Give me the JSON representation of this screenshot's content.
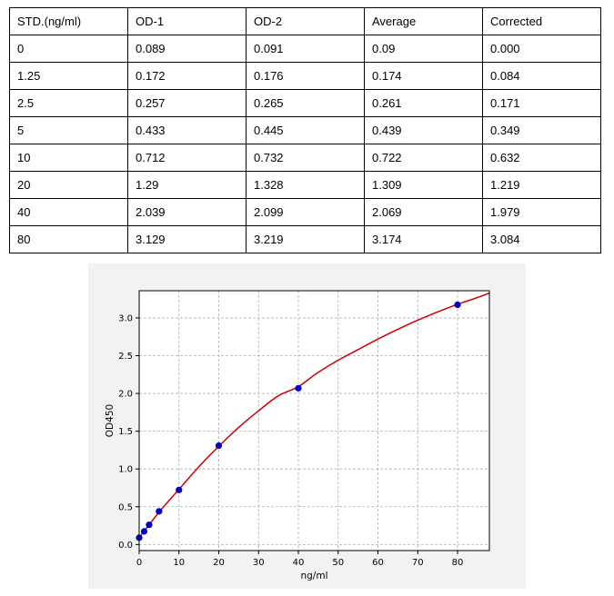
{
  "table": {
    "headers": [
      "STD.(ng/ml)",
      "OD-1",
      "OD-2",
      "Average",
      "Corrected"
    ],
    "rows": [
      [
        "0",
        "0.089",
        "0.091",
        "0.09",
        "0.000"
      ],
      [
        "1.25",
        "0.172",
        "0.176",
        "0.174",
        "0.084"
      ],
      [
        "2.5",
        "0.257",
        "0.265",
        "0.261",
        "0.171"
      ],
      [
        "5",
        "0.433",
        "0.445",
        "0.439",
        "0.349"
      ],
      [
        "10",
        "0.712",
        "0.732",
        "0.722",
        "0.632"
      ],
      [
        "20",
        "1.29",
        "1.328",
        "1.309",
        "1.219"
      ],
      [
        "40",
        "2.039",
        "2.099",
        "2.069",
        "1.979"
      ],
      [
        "80",
        "3.129",
        "3.219",
        "3.174",
        "3.084"
      ]
    ]
  },
  "chart_data": {
    "type": "scatter",
    "title": "",
    "xlabel": "ng/ml",
    "ylabel": "OD450",
    "xlim": [
      0,
      88
    ],
    "ylim": [
      -0.08,
      3.36
    ],
    "xticks": [
      0,
      10,
      20,
      30,
      40,
      50,
      60,
      70,
      80
    ],
    "yticks": [
      0.0,
      0.5,
      1.0,
      1.5,
      2.0,
      2.5,
      3.0
    ],
    "grid": true,
    "points": {
      "x": [
        0,
        1.25,
        2.5,
        5,
        10,
        20,
        40,
        80
      ],
      "y": [
        0.09,
        0.174,
        0.261,
        0.439,
        0.722,
        1.309,
        2.069,
        3.174
      ],
      "color": "#0000cc"
    },
    "fit_curve": {
      "color": "#cc0000",
      "x": [
        0,
        5,
        10,
        15,
        20,
        25,
        30,
        35,
        40,
        45,
        50,
        55,
        60,
        65,
        70,
        75,
        80,
        85,
        88
      ],
      "y": [
        0.09,
        0.43,
        0.73,
        1.03,
        1.3,
        1.55,
        1.77,
        1.97,
        2.09,
        2.28,
        2.44,
        2.58,
        2.72,
        2.85,
        2.97,
        3.08,
        3.18,
        3.27,
        3.33
      ]
    }
  }
}
